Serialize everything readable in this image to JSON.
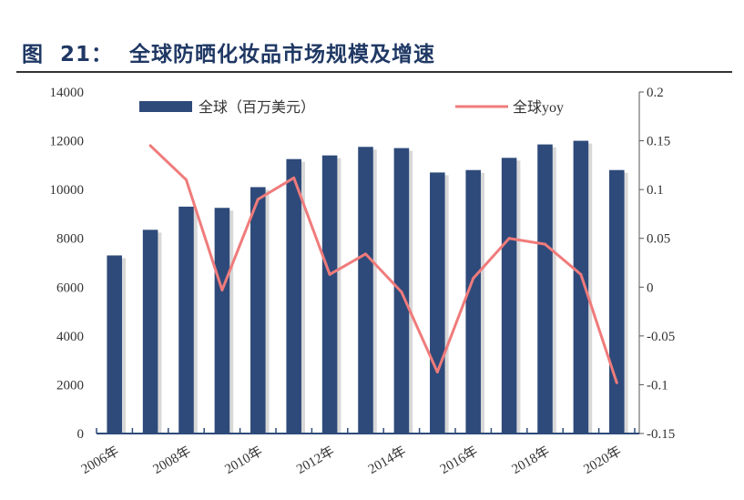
{
  "header": {
    "figure_label": "图  21：",
    "title": "全球防晒化妆品市场规模及增速"
  },
  "chart_data": {
    "type": "bar+line",
    "title": "全球防晒化妆品市场规模及增速",
    "categories": [
      "2006年",
      "2007年",
      "2008年",
      "2009年",
      "2010年",
      "2011年",
      "2012年",
      "2013年",
      "2014年",
      "2015年",
      "2016年",
      "2017年",
      "2018年",
      "2019年",
      "2020年"
    ],
    "tick_labels_shown": [
      "2006年",
      "2008年",
      "2010年",
      "2012年",
      "2014年",
      "2016年",
      "2018年",
      "2020年"
    ],
    "series": [
      {
        "name": "全球（百万美元）",
        "type": "bar",
        "axis": "left",
        "color": "#2e4a7a",
        "values": [
          7300,
          8350,
          9300,
          9250,
          10100,
          11250,
          11400,
          11750,
          11700,
          10700,
          10800,
          11300,
          11850,
          12000,
          10800
        ]
      },
      {
        "name": "全球yoy",
        "type": "line",
        "axis": "right",
        "color": "#f07b7b",
        "values": [
          null,
          0.145,
          0.11,
          -0.003,
          0.09,
          0.112,
          0.013,
          0.034,
          -0.005,
          -0.087,
          0.009,
          0.05,
          0.044,
          0.013,
          -0.098
        ]
      }
    ],
    "y_left": {
      "range": [
        0,
        14000
      ],
      "ticks": [
        0,
        2000,
        4000,
        6000,
        8000,
        10000,
        12000,
        14000
      ]
    },
    "y_right": {
      "range": [
        -0.15,
        0.2
      ],
      "ticks": [
        "-0.15",
        "-0.1",
        "-0.05",
        "0",
        "0.05",
        "0.1",
        "0.15",
        "0.2"
      ]
    },
    "legend_placement": "top",
    "grid": false
  }
}
